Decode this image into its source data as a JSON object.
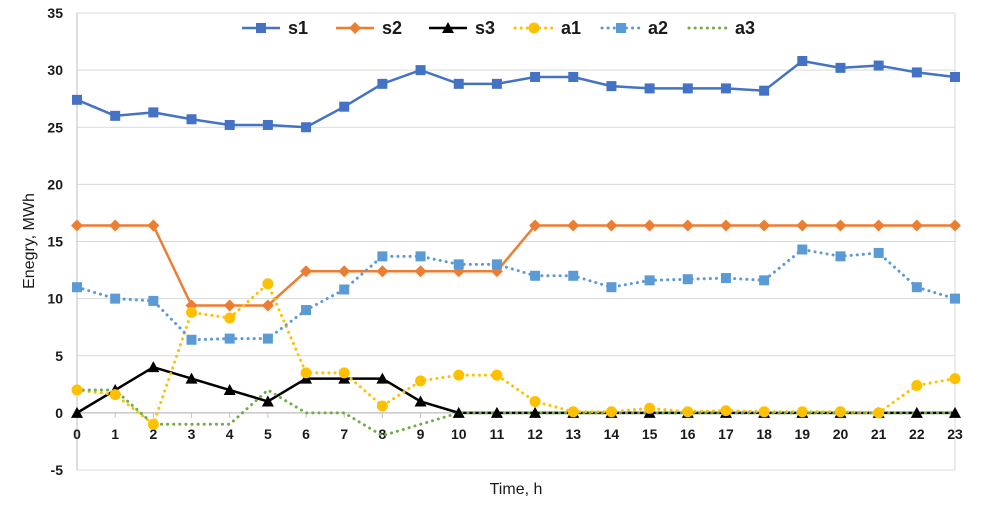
{
  "chart_data": {
    "type": "line",
    "title": "",
    "xlabel": "Time, h",
    "ylabel": "Enegry, MWh",
    "x": [
      0,
      1,
      2,
      3,
      4,
      5,
      6,
      7,
      8,
      9,
      10,
      11,
      12,
      13,
      14,
      15,
      16,
      17,
      18,
      19,
      20,
      21,
      22,
      23
    ],
    "xlim": [
      0,
      23
    ],
    "ylim": [
      -5,
      35
    ],
    "yticks": [
      -5,
      0,
      5,
      10,
      15,
      20,
      25,
      30,
      35
    ],
    "grid": "horizontal",
    "legend_position": "top",
    "series": [
      {
        "name": "s1",
        "color": "#4472C4",
        "line": "solid",
        "marker": "square",
        "values": [
          27.4,
          26.0,
          26.3,
          25.7,
          25.2,
          25.2,
          25.0,
          26.8,
          28.8,
          30.0,
          28.8,
          28.8,
          29.4,
          29.4,
          28.6,
          28.4,
          28.4,
          28.4,
          28.2,
          30.8,
          30.2,
          30.4,
          29.8,
          29.4
        ]
      },
      {
        "name": "s2",
        "color": "#ED7D31",
        "line": "solid",
        "marker": "diamond",
        "values": [
          16.4,
          16.4,
          16.4,
          9.4,
          9.4,
          9.4,
          12.4,
          12.4,
          12.4,
          12.4,
          12.4,
          12.4,
          16.4,
          16.4,
          16.4,
          16.4,
          16.4,
          16.4,
          16.4,
          16.4,
          16.4,
          16.4,
          16.4,
          16.4
        ]
      },
      {
        "name": "s3",
        "color": "#000000",
        "line": "solid",
        "marker": "triangle",
        "values": [
          0,
          2,
          4,
          3,
          2,
          1,
          3,
          3,
          3,
          1,
          0,
          0,
          0,
          0,
          0,
          0,
          0,
          0,
          0,
          0,
          0,
          0,
          0,
          0
        ]
      },
      {
        "name": "a1",
        "color": "#FFC000",
        "line": "dotted",
        "marker": "circle",
        "values": [
          2.0,
          1.6,
          -1.0,
          8.8,
          8.3,
          11.3,
          3.5,
          3.5,
          0.6,
          2.8,
          3.3,
          3.3,
          1.0,
          0.1,
          0.1,
          0.4,
          0.1,
          0.2,
          0.1,
          0.1,
          0.1,
          0.0,
          2.4,
          3.0
        ]
      },
      {
        "name": "a2",
        "color": "#5B9BD5",
        "line": "dotted",
        "marker": "square",
        "values": [
          11.0,
          10.0,
          9.8,
          6.4,
          6.5,
          6.5,
          9.0,
          10.8,
          13.7,
          13.7,
          13.0,
          13.0,
          12.0,
          12.0,
          11.0,
          11.6,
          11.7,
          11.8,
          11.6,
          14.3,
          13.7,
          14.0,
          11.0,
          10.0
        ]
      },
      {
        "name": "a3",
        "color": "#70AD47",
        "line": "dotted",
        "marker": "none",
        "values": [
          2.0,
          2.0,
          -1.0,
          -1.0,
          -1.0,
          2.0,
          0.0,
          0.0,
          -2.0,
          -1.0,
          0.0,
          0.0,
          0.0,
          0.0,
          0.0,
          0.0,
          0.0,
          0.0,
          0.0,
          0.0,
          0.0,
          0.0,
          0.0,
          0.0
        ]
      }
    ]
  }
}
